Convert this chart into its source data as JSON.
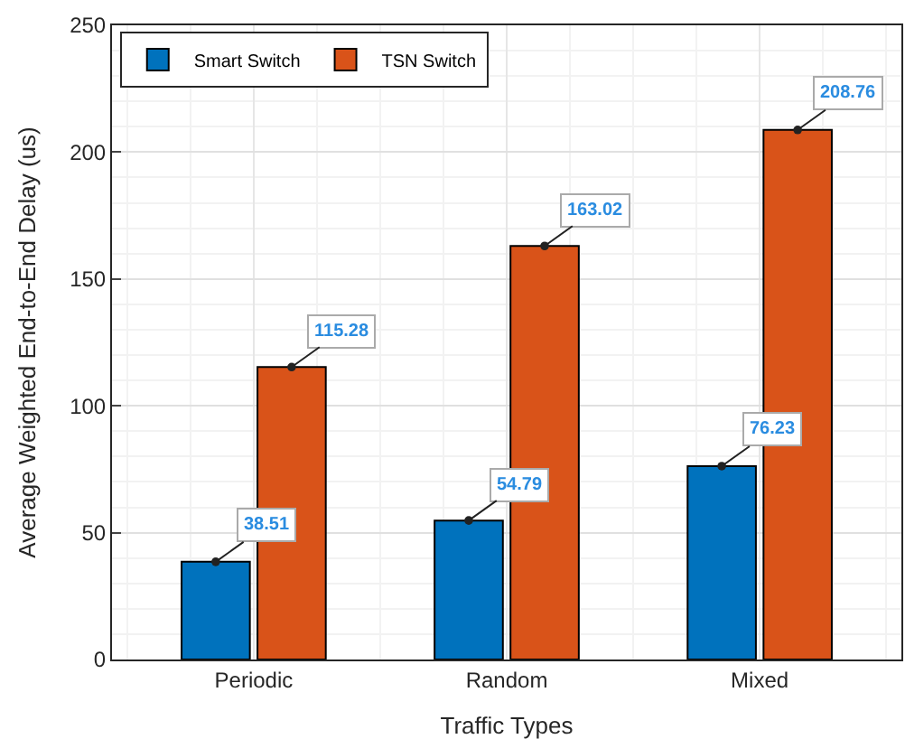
{
  "chart_data": {
    "type": "bar",
    "xlabel": "Traffic Types",
    "ylabel": "Average Weighted End-to-End Delay (us)",
    "categories": [
      "Periodic",
      "Random",
      "Mixed"
    ],
    "series": [
      {
        "name": "Smart Switch",
        "color": "#0072bd",
        "values": [
          38.51,
          54.79,
          76.23
        ]
      },
      {
        "name": "TSN Switch",
        "color": "#d95319",
        "values": [
          115.28,
          163.02,
          208.76
        ]
      }
    ],
    "ylim": [
      0,
      250
    ],
    "yticks": [
      0,
      50,
      100,
      150,
      200,
      250
    ],
    "grid": true,
    "legend": "top left",
    "data_labels": true
  }
}
